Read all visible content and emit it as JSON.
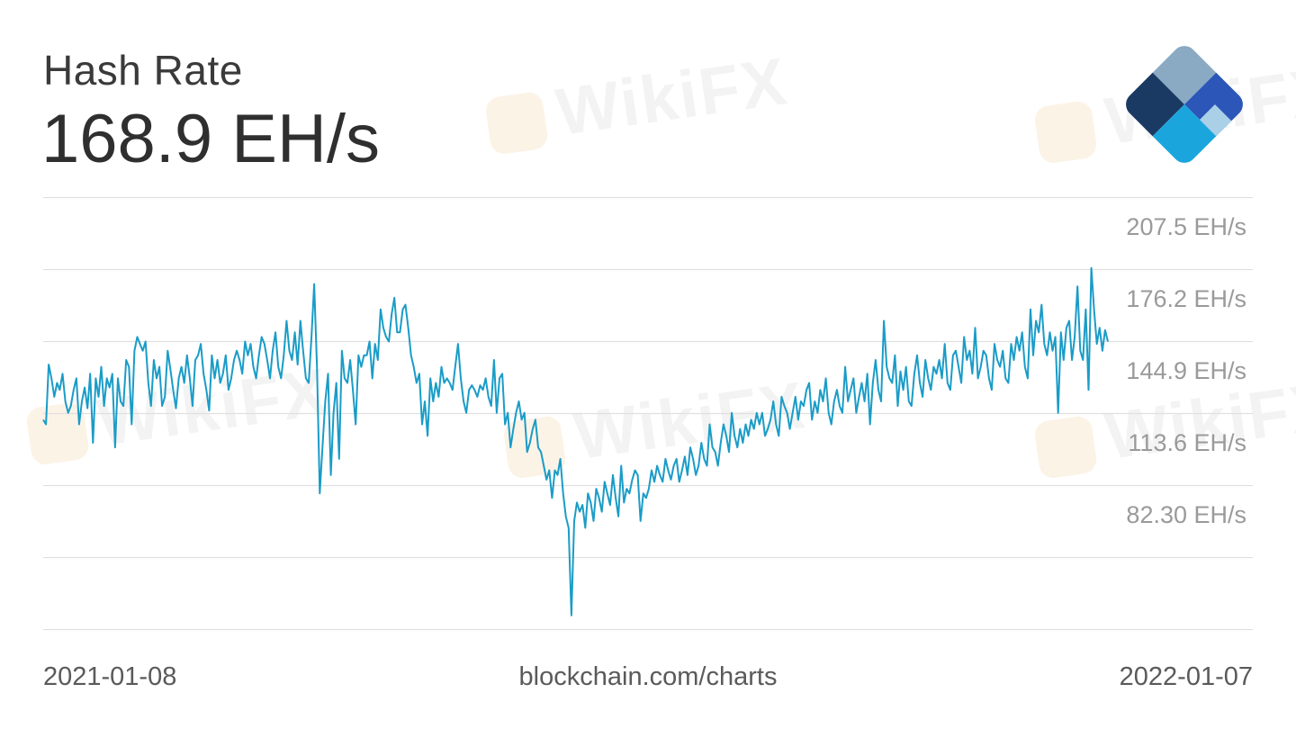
{
  "header": {
    "title": "Hash Rate",
    "current_value": "168.9 EH/s"
  },
  "footer": {
    "start_date": "2021-01-08",
    "source": "blockchain.com/charts",
    "end_date": "2022-01-07"
  },
  "watermark": {
    "text": "WikiFX"
  },
  "colors": {
    "line": "#1a9cc7",
    "grid": "#e0e0e0",
    "tick_label": "#9a9a9a",
    "logo_dark": "#1b3a63",
    "logo_mid": "#2c56b8",
    "logo_gray": "#8aaac4",
    "logo_light": "#a9d0e6",
    "logo_cyan": "#1aa6dd"
  },
  "logo": {
    "icon": "blockchain-diamond-logo"
  },
  "chart_data": {
    "type": "line",
    "title": "Hash Rate",
    "x_start": "2021-01-08",
    "x_end": "2022-01-07",
    "ylim": [
      51.0,
      238.8
    ],
    "y_ticks": [
      82.3,
      113.6,
      144.9,
      176.2,
      207.5
    ],
    "y_tick_labels": [
      "82.30 EH/s",
      "113.6 EH/s",
      "144.9 EH/s",
      "176.2 EH/s",
      "207.5 EH/s"
    ],
    "grid": true,
    "series": [
      {
        "values": [
          142,
          140,
          166,
          160,
          152,
          158,
          155,
          162,
          150,
          145,
          148,
          155,
          160,
          140,
          150,
          156,
          147,
          162,
          132,
          160,
          152,
          165,
          148,
          160,
          156,
          162,
          130,
          160,
          150,
          148,
          168,
          165,
          140,
          172,
          178,
          175,
          172,
          176,
          158,
          148,
          168,
          160,
          165,
          148,
          152,
          172,
          164,
          155,
          147,
          160,
          165,
          158,
          170,
          160,
          148,
          168,
          170,
          175,
          162,
          155,
          146,
          170,
          160,
          168,
          158,
          162,
          170,
          155,
          160,
          168,
          172,
          168,
          162,
          176,
          170,
          175,
          165,
          160,
          170,
          178,
          175,
          168,
          160,
          172,
          180,
          165,
          160,
          170,
          185,
          172,
          168,
          180,
          166,
          185,
          172,
          160,
          158,
          178,
          201,
          165,
          110,
          130,
          150,
          162,
          118,
          145,
          158,
          125,
          172,
          160,
          158,
          168,
          155,
          140,
          170,
          165,
          170,
          170,
          176,
          160,
          175,
          168,
          190,
          182,
          178,
          176,
          188,
          195,
          180,
          180,
          190,
          192,
          182,
          170,
          165,
          158,
          162,
          140,
          150,
          135,
          160,
          150,
          158,
          152,
          165,
          158,
          160,
          158,
          155,
          165,
          175,
          160,
          150,
          145,
          155,
          157,
          155,
          152,
          157,
          155,
          160,
          152,
          148,
          168,
          145,
          160,
          162,
          140,
          145,
          130,
          138,
          145,
          150,
          142,
          145,
          128,
          132,
          138,
          142,
          130,
          128,
          122,
          116,
          120,
          108,
          120,
          118,
          125,
          110,
          100,
          95,
          57,
          98,
          106,
          102,
          105,
          95,
          110,
          106,
          98,
          112,
          108,
          102,
          115,
          110,
          105,
          118,
          108,
          100,
          122,
          106,
          112,
          110,
          116,
          120,
          118,
          98,
          110,
          108,
          112,
          120,
          115,
          122,
          118,
          115,
          125,
          120,
          116,
          122,
          125,
          115,
          120,
          126,
          118,
          130,
          125,
          118,
          122,
          132,
          125,
          122,
          140,
          130,
          128,
          122,
          132,
          140,
          135,
          128,
          145,
          135,
          130,
          138,
          132,
          140,
          135,
          142,
          138,
          145,
          140,
          145,
          135,
          138,
          142,
          150,
          140,
          135,
          152,
          148,
          145,
          138,
          145,
          152,
          142,
          150,
          148,
          155,
          158,
          142,
          150,
          145,
          155,
          150,
          160,
          145,
          140,
          150,
          155,
          148,
          145,
          165,
          150,
          155,
          160,
          145,
          152,
          158,
          150,
          162,
          140,
          158,
          168,
          155,
          150,
          185,
          165,
          160,
          158,
          170,
          148,
          163,
          155,
          165,
          150,
          148,
          162,
          170,
          158,
          152,
          168,
          160,
          155,
          165,
          162,
          168,
          160,
          175,
          158,
          155,
          170,
          172,
          165,
          158,
          178,
          168,
          172,
          162,
          182,
          160,
          165,
          172,
          170,
          160,
          155,
          175,
          168,
          165,
          172,
          160,
          158,
          175,
          168,
          178,
          172,
          180,
          165,
          160,
          190,
          170,
          185,
          180,
          192,
          175,
          170,
          180,
          172,
          178,
          145,
          180,
          168,
          182,
          185,
          168,
          178,
          200,
          172,
          168,
          190,
          155,
          208,
          190,
          175,
          182,
          172,
          181,
          176
        ]
      }
    ]
  }
}
